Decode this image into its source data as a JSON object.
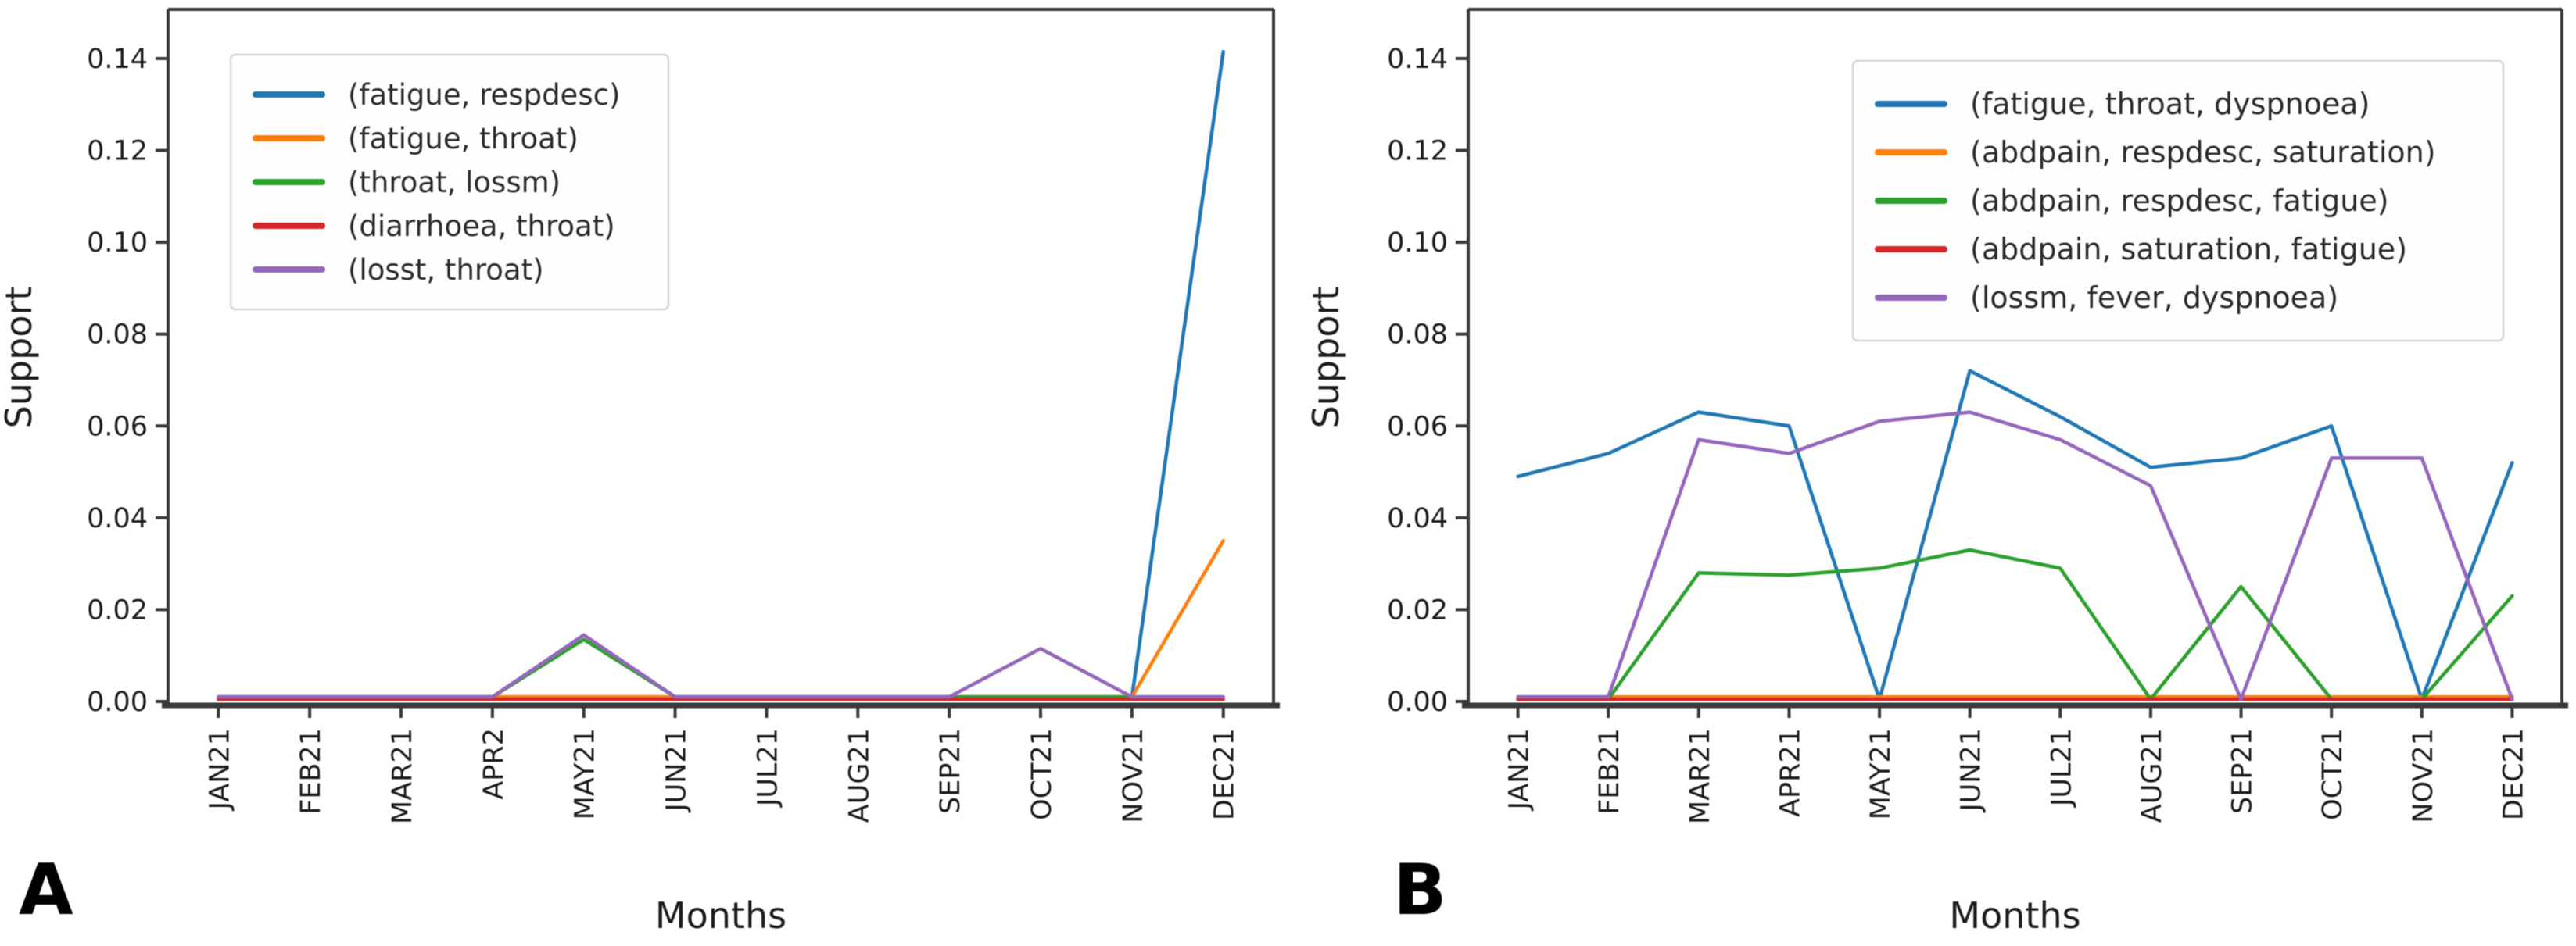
{
  "figure": {
    "background": "#ffffff",
    "text_color": "#1c1c1c",
    "spine_color": "#3a3a3a",
    "legend_border_color": "#d5d5d5",
    "legend_background": "#fefefe"
  },
  "chart_data": [
    {
      "id": "A",
      "type": "line",
      "panel_label": "A",
      "xlabel": "Months",
      "ylabel": "Support",
      "grid": false,
      "legend_position": "upper left",
      "ylim": [
        0,
        0.15
      ],
      "ytick_values": [
        0.0,
        0.02,
        0.04,
        0.06,
        0.08,
        0.1,
        0.12,
        0.14
      ],
      "ytick_labels": [
        "0.00",
        "0.02",
        "0.04",
        "0.06",
        "0.08",
        "0.10",
        "0.12",
        "0.14"
      ],
      "categories": [
        "JAN21",
        "FEB21",
        "MAR21",
        "APR2",
        "MAY21",
        "JUN21",
        "JUL21",
        "AUG21",
        "SEP21",
        "OCT21",
        "NOV21",
        "DEC21"
      ],
      "series": [
        {
          "name": "(fatigue, respdesc)",
          "color": "#1f77b4",
          "values": [
            0.001,
            0.001,
            0.001,
            0.001,
            0.001,
            0.001,
            0.001,
            0.001,
            0.001,
            0.001,
            0.001,
            0.1415
          ]
        },
        {
          "name": "(fatigue, throat)",
          "color": "#ff7f0e",
          "values": [
            0.001,
            0.001,
            0.001,
            0.001,
            0.001,
            0.001,
            0.001,
            0.001,
            0.001,
            0.001,
            0.001,
            0.035
          ]
        },
        {
          "name": "(throat, lossm)",
          "color": "#2ca02c",
          "values": [
            0.001,
            0.001,
            0.001,
            0.001,
            0.0135,
            0.001,
            0.001,
            0.001,
            0.001,
            0.001,
            0.001,
            0.001
          ]
        },
        {
          "name": "(diarrhoea, throat)",
          "color": "#d62728",
          "values": [
            0.0005,
            0.0005,
            0.0005,
            0.0005,
            0.0005,
            0.0005,
            0.0005,
            0.0005,
            0.0005,
            0.0005,
            0.0005,
            0.0005
          ]
        },
        {
          "name": "(losst, throat)",
          "color": "#9467bd",
          "values": [
            0.001,
            0.001,
            0.001,
            0.001,
            0.0145,
            0.001,
            0.001,
            0.001,
            0.001,
            0.0115,
            0.001,
            0.001
          ]
        }
      ]
    },
    {
      "id": "B",
      "type": "line",
      "panel_label": "B",
      "xlabel": "Months",
      "ylabel": "Support",
      "grid": false,
      "legend_position": "upper right",
      "ylim": [
        0,
        0.15
      ],
      "ytick_values": [
        0.0,
        0.02,
        0.04,
        0.06,
        0.08,
        0.1,
        0.12,
        0.14
      ],
      "ytick_labels": [
        "0.00",
        "0.02",
        "0.04",
        "0.06",
        "0.08",
        "0.10",
        "0.12",
        "0.14"
      ],
      "categories": [
        "JAN21",
        "FEB21",
        "MAR21",
        "APR21",
        "MAY21",
        "JUN21",
        "JUL21",
        "AUG21",
        "SEP21",
        "OCT21",
        "NOV21",
        "DEC21"
      ],
      "series": [
        {
          "name": "(fatigue, throat, dyspnoea)",
          "color": "#1f77b4",
          "values": [
            0.049,
            0.054,
            0.063,
            0.06,
            0.0005,
            0.072,
            0.062,
            0.051,
            0.053,
            0.06,
            0.0005,
            0.052
          ]
        },
        {
          "name": "(abdpain, respdesc, saturation)",
          "color": "#ff7f0e",
          "values": [
            0.001,
            0.001,
            0.001,
            0.001,
            0.001,
            0.001,
            0.001,
            0.001,
            0.001,
            0.001,
            0.001,
            0.001
          ]
        },
        {
          "name": "(abdpain, respdesc, fatigue)",
          "color": "#2ca02c",
          "values": [
            0.0005,
            0.0005,
            0.028,
            0.0275,
            0.029,
            0.033,
            0.029,
            0.0005,
            0.025,
            0.0005,
            0.0005,
            0.023
          ]
        },
        {
          "name": "(abdpain, saturation, fatigue)",
          "color": "#d62728",
          "values": [
            0.0005,
            0.0005,
            0.0005,
            0.0005,
            0.0005,
            0.0005,
            0.0005,
            0.0005,
            0.0005,
            0.0005,
            0.0005,
            0.0005
          ]
        },
        {
          "name": "(lossm, fever, dyspnoea)",
          "color": "#9467bd",
          "values": [
            0.001,
            0.001,
            0.057,
            0.054,
            0.061,
            0.063,
            0.057,
            0.047,
            0.0005,
            0.053,
            0.053,
            0.0005
          ]
        }
      ]
    }
  ]
}
